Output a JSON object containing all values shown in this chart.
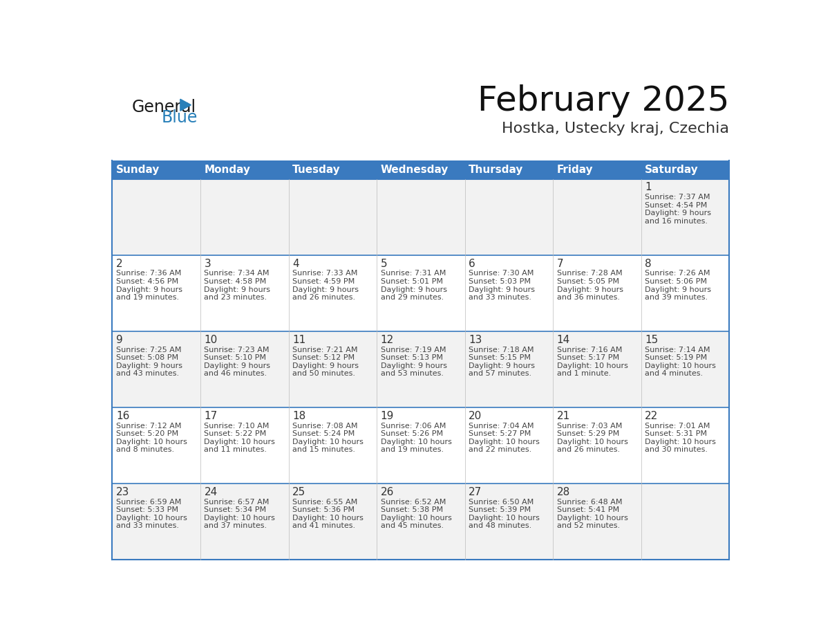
{
  "title": "February 2025",
  "subtitle": "Hostka, Ustecky kraj, Czechia",
  "header_color": "#3a7abf",
  "header_text_color": "#ffffff",
  "cell_bg_even": "#f2f2f2",
  "cell_bg_odd": "#ffffff",
  "border_color": "#3a7abf",
  "inner_line_color": "#3a7abf",
  "day_headers": [
    "Sunday",
    "Monday",
    "Tuesday",
    "Wednesday",
    "Thursday",
    "Friday",
    "Saturday"
  ],
  "text_color": "#444444",
  "day_num_color": "#333333",
  "days": [
    {
      "date": 1,
      "row": 0,
      "col": 6,
      "sunrise": "7:37 AM",
      "sunset": "4:54 PM",
      "daylight": "9 hours and 16 minutes."
    },
    {
      "date": 2,
      "row": 1,
      "col": 0,
      "sunrise": "7:36 AM",
      "sunset": "4:56 PM",
      "daylight": "9 hours and 19 minutes."
    },
    {
      "date": 3,
      "row": 1,
      "col": 1,
      "sunrise": "7:34 AM",
      "sunset": "4:58 PM",
      "daylight": "9 hours and 23 minutes."
    },
    {
      "date": 4,
      "row": 1,
      "col": 2,
      "sunrise": "7:33 AM",
      "sunset": "4:59 PM",
      "daylight": "9 hours and 26 minutes."
    },
    {
      "date": 5,
      "row": 1,
      "col": 3,
      "sunrise": "7:31 AM",
      "sunset": "5:01 PM",
      "daylight": "9 hours and 29 minutes."
    },
    {
      "date": 6,
      "row": 1,
      "col": 4,
      "sunrise": "7:30 AM",
      "sunset": "5:03 PM",
      "daylight": "9 hours and 33 minutes."
    },
    {
      "date": 7,
      "row": 1,
      "col": 5,
      "sunrise": "7:28 AM",
      "sunset": "5:05 PM",
      "daylight": "9 hours and 36 minutes."
    },
    {
      "date": 8,
      "row": 1,
      "col": 6,
      "sunrise": "7:26 AM",
      "sunset": "5:06 PM",
      "daylight": "9 hours and 39 minutes."
    },
    {
      "date": 9,
      "row": 2,
      "col": 0,
      "sunrise": "7:25 AM",
      "sunset": "5:08 PM",
      "daylight": "9 hours and 43 minutes."
    },
    {
      "date": 10,
      "row": 2,
      "col": 1,
      "sunrise": "7:23 AM",
      "sunset": "5:10 PM",
      "daylight": "9 hours and 46 minutes."
    },
    {
      "date": 11,
      "row": 2,
      "col": 2,
      "sunrise": "7:21 AM",
      "sunset": "5:12 PM",
      "daylight": "9 hours and 50 minutes."
    },
    {
      "date": 12,
      "row": 2,
      "col": 3,
      "sunrise": "7:19 AM",
      "sunset": "5:13 PM",
      "daylight": "9 hours and 53 minutes."
    },
    {
      "date": 13,
      "row": 2,
      "col": 4,
      "sunrise": "7:18 AM",
      "sunset": "5:15 PM",
      "daylight": "9 hours and 57 minutes."
    },
    {
      "date": 14,
      "row": 2,
      "col": 5,
      "sunrise": "7:16 AM",
      "sunset": "5:17 PM",
      "daylight": "10 hours and 1 minute."
    },
    {
      "date": 15,
      "row": 2,
      "col": 6,
      "sunrise": "7:14 AM",
      "sunset": "5:19 PM",
      "daylight": "10 hours and 4 minutes."
    },
    {
      "date": 16,
      "row": 3,
      "col": 0,
      "sunrise": "7:12 AM",
      "sunset": "5:20 PM",
      "daylight": "10 hours and 8 minutes."
    },
    {
      "date": 17,
      "row": 3,
      "col": 1,
      "sunrise": "7:10 AM",
      "sunset": "5:22 PM",
      "daylight": "10 hours and 11 minutes."
    },
    {
      "date": 18,
      "row": 3,
      "col": 2,
      "sunrise": "7:08 AM",
      "sunset": "5:24 PM",
      "daylight": "10 hours and 15 minutes."
    },
    {
      "date": 19,
      "row": 3,
      "col": 3,
      "sunrise": "7:06 AM",
      "sunset": "5:26 PM",
      "daylight": "10 hours and 19 minutes."
    },
    {
      "date": 20,
      "row": 3,
      "col": 4,
      "sunrise": "7:04 AM",
      "sunset": "5:27 PM",
      "daylight": "10 hours and 22 minutes."
    },
    {
      "date": 21,
      "row": 3,
      "col": 5,
      "sunrise": "7:03 AM",
      "sunset": "5:29 PM",
      "daylight": "10 hours and 26 minutes."
    },
    {
      "date": 22,
      "row": 3,
      "col": 6,
      "sunrise": "7:01 AM",
      "sunset": "5:31 PM",
      "daylight": "10 hours and 30 minutes."
    },
    {
      "date": 23,
      "row": 4,
      "col": 0,
      "sunrise": "6:59 AM",
      "sunset": "5:33 PM",
      "daylight": "10 hours and 33 minutes."
    },
    {
      "date": 24,
      "row": 4,
      "col": 1,
      "sunrise": "6:57 AM",
      "sunset": "5:34 PM",
      "daylight": "10 hours and 37 minutes."
    },
    {
      "date": 25,
      "row": 4,
      "col": 2,
      "sunrise": "6:55 AM",
      "sunset": "5:36 PM",
      "daylight": "10 hours and 41 minutes."
    },
    {
      "date": 26,
      "row": 4,
      "col": 3,
      "sunrise": "6:52 AM",
      "sunset": "5:38 PM",
      "daylight": "10 hours and 45 minutes."
    },
    {
      "date": 27,
      "row": 4,
      "col": 4,
      "sunrise": "6:50 AM",
      "sunset": "5:39 PM",
      "daylight": "10 hours and 48 minutes."
    },
    {
      "date": 28,
      "row": 4,
      "col": 5,
      "sunrise": "6:48 AM",
      "sunset": "5:41 PM",
      "daylight": "10 hours and 52 minutes."
    }
  ],
  "num_rows": 5,
  "num_cols": 7,
  "logo_text1": "General",
  "logo_text2": "Blue",
  "logo_text1_color": "#1a1a1a",
  "logo_text2_color": "#2980b9",
  "logo_triangle_color": "#2980b9",
  "title_fontsize": 36,
  "subtitle_fontsize": 16,
  "header_fontsize": 11,
  "daynum_fontsize": 11,
  "cell_fontsize": 8
}
